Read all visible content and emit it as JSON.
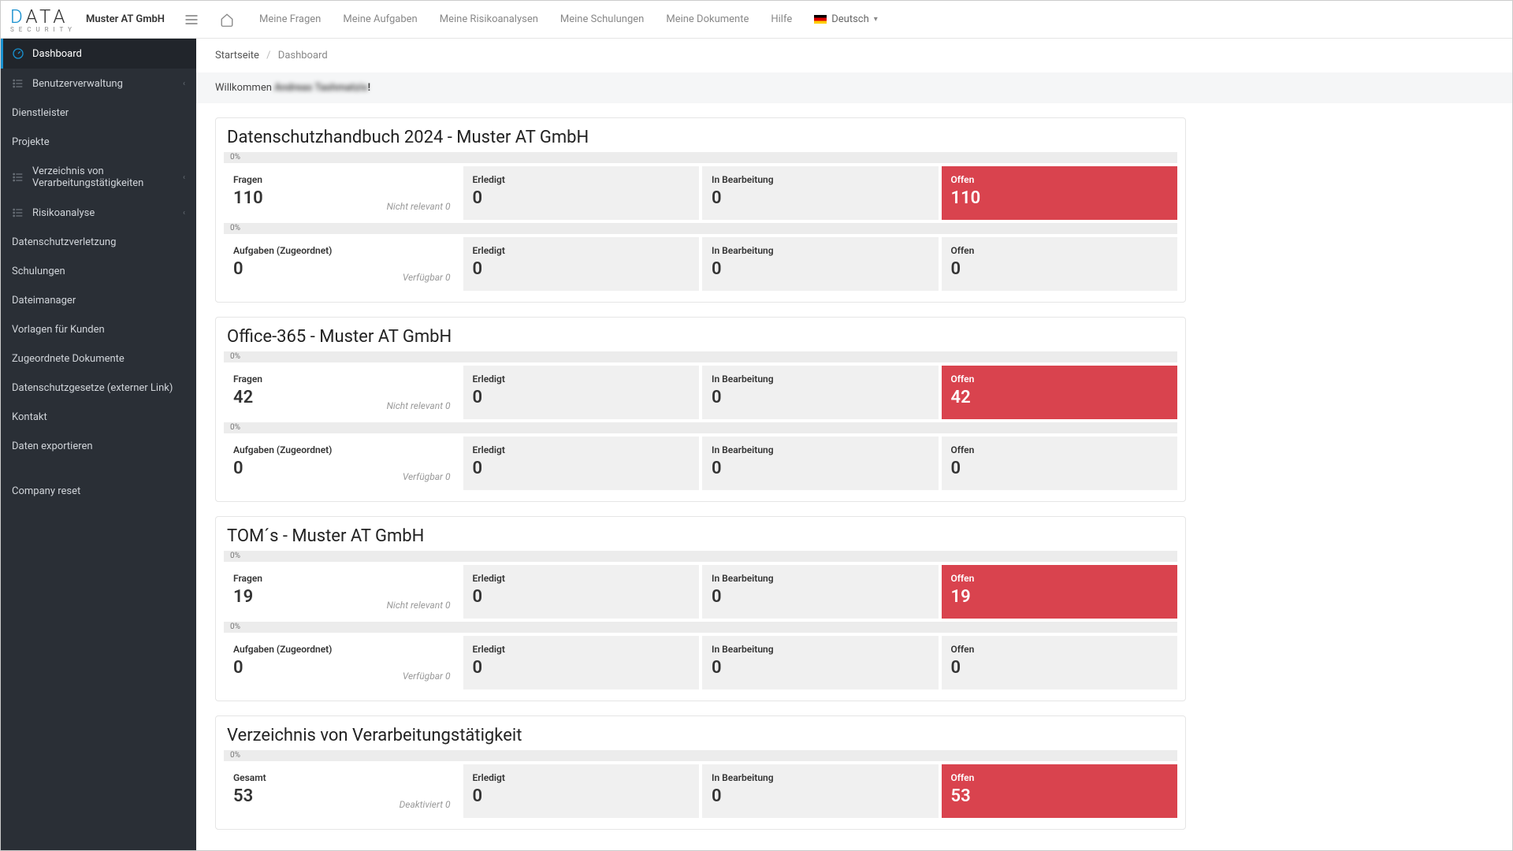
{
  "branding": {
    "logo_text": "DATA",
    "logo_sub": "S E C U R I T Y",
    "company": "Muster AT GmbH"
  },
  "topnav": {
    "items": [
      "Meine Fragen",
      "Meine Aufgaben",
      "Meine Risikoanalysen",
      "Meine Schulungen",
      "Meine Dokumente",
      "Hilfe"
    ],
    "language": "Deutsch"
  },
  "sidebar": {
    "items": [
      {
        "label": "Dashboard",
        "icon": "dashboard",
        "active": true
      },
      {
        "label": "Benutzerverwaltung",
        "icon": "list",
        "expandable": true
      },
      {
        "label": "Dienstleister",
        "plain": true
      },
      {
        "label": "Projekte",
        "plain": true
      },
      {
        "label": "Verzeichnis von Verarbeitungstätigkeiten",
        "icon": "list",
        "expandable": true
      },
      {
        "label": "Risikoanalyse",
        "icon": "list",
        "expandable": true
      },
      {
        "label": "Datenschutzverletzung",
        "plain": true
      },
      {
        "label": "Schulungen",
        "plain": true
      },
      {
        "label": "Dateimanager",
        "plain": true
      },
      {
        "label": "Vorlagen für Kunden",
        "plain": true
      },
      {
        "label": "Zugeordnete Dokumente",
        "plain": true
      },
      {
        "label": "Datenschutzgesetze (externer Link)",
        "plain": true
      },
      {
        "label": "Kontakt",
        "plain": true
      },
      {
        "label": "Daten exportieren",
        "plain": true
      },
      {
        "label": "Company reset",
        "plain": true,
        "gap": true
      }
    ]
  },
  "breadcrumb": {
    "home": "Startseite",
    "current": "Dashboard"
  },
  "welcome": {
    "prefix": "Willkommen ",
    "name": "Andreas Tashmatzis",
    "suffix": "!"
  },
  "labels": {
    "fragen": "Fragen",
    "erledigt": "Erledigt",
    "in_bearbeitung": "In Bearbeitung",
    "offen": "Offen",
    "aufgaben": "Aufgaben (Zugeordnet)",
    "gesamt": "Gesamt",
    "nicht_relevant": "Nicht relevant",
    "verfuegbar": "Verfügbar",
    "deaktiviert": "Deaktiviert",
    "percent0": "0%"
  },
  "cards": [
    {
      "title": "Datenschutzhandbuch 2024 - Muster AT GmbH",
      "rows": [
        {
          "type": "fragen",
          "total": "110",
          "erledigt": "0",
          "in_bearbeitung": "0",
          "offen": "110",
          "note_label": "nicht_relevant",
          "note_val": "0",
          "danger": true
        },
        {
          "type": "aufgaben",
          "total": "0",
          "erledigt": "0",
          "in_bearbeitung": "0",
          "offen": "0",
          "note_label": "verfuegbar",
          "note_val": "0",
          "danger": false
        }
      ]
    },
    {
      "title": "Office-365 - Muster AT GmbH",
      "rows": [
        {
          "type": "fragen",
          "total": "42",
          "erledigt": "0",
          "in_bearbeitung": "0",
          "offen": "42",
          "note_label": "nicht_relevant",
          "note_val": "0",
          "danger": true
        },
        {
          "type": "aufgaben",
          "total": "0",
          "erledigt": "0",
          "in_bearbeitung": "0",
          "offen": "0",
          "note_label": "verfuegbar",
          "note_val": "0",
          "danger": false
        }
      ]
    },
    {
      "title": "TOM´s - Muster AT GmbH",
      "rows": [
        {
          "type": "fragen",
          "total": "19",
          "erledigt": "0",
          "in_bearbeitung": "0",
          "offen": "19",
          "note_label": "nicht_relevant",
          "note_val": "0",
          "danger": true
        },
        {
          "type": "aufgaben",
          "total": "0",
          "erledigt": "0",
          "in_bearbeitung": "0",
          "offen": "0",
          "note_label": "verfuegbar",
          "note_val": "0",
          "danger": false
        }
      ]
    },
    {
      "title": "Verzeichnis von Verarbeitungstätigkeit",
      "rows": [
        {
          "type": "gesamt",
          "total": "53",
          "erledigt": "0",
          "in_bearbeitung": "0",
          "offen": "53",
          "note_label": "deaktiviert",
          "note_val": "0",
          "danger": true
        }
      ]
    }
  ],
  "colors": {
    "sidebar_bg": "#2a2f36",
    "accent": "#1890cf",
    "danger": "#d9434e",
    "stat_bg": "#f0f0f0",
    "progress_bg": "#ececec"
  }
}
